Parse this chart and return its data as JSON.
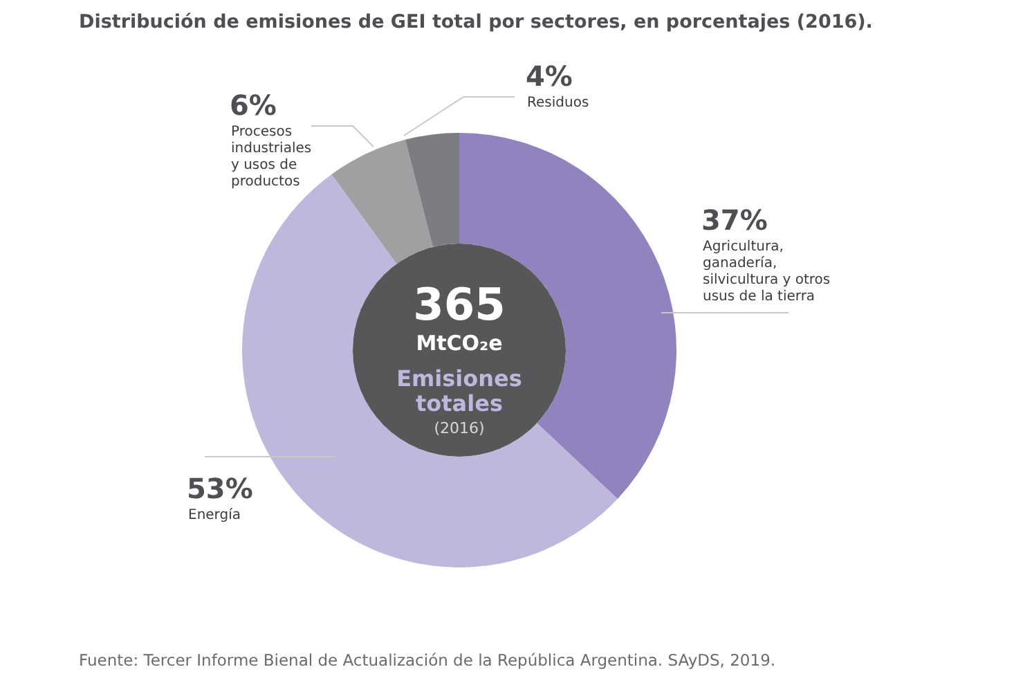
{
  "chart_data": {
    "type": "donut",
    "title": "Distribución de emisiones de GEI total por sectores, en porcentajes (2016).",
    "categories": [
      "Agricultura, ganadería, silvicultura y otros usus de la tierra",
      "Energía",
      "Procesos industriales y usos de productos",
      "Residuos"
    ],
    "values": [
      37,
      53,
      6,
      4
    ],
    "value_labels": [
      "37%",
      "53%",
      "6%",
      "4%"
    ],
    "colors": [
      "#9183be",
      "#bfb7dc",
      "#9ea0a1",
      "#7c7d80"
    ],
    "annotations": [
      "365",
      "MtCO₂e",
      "Emisiones totales",
      "(2016)",
      "Fuente: Tercer Informe Bienal de Actualización de la República Argentina. SAyDS, 2019."
    ]
  }
}
